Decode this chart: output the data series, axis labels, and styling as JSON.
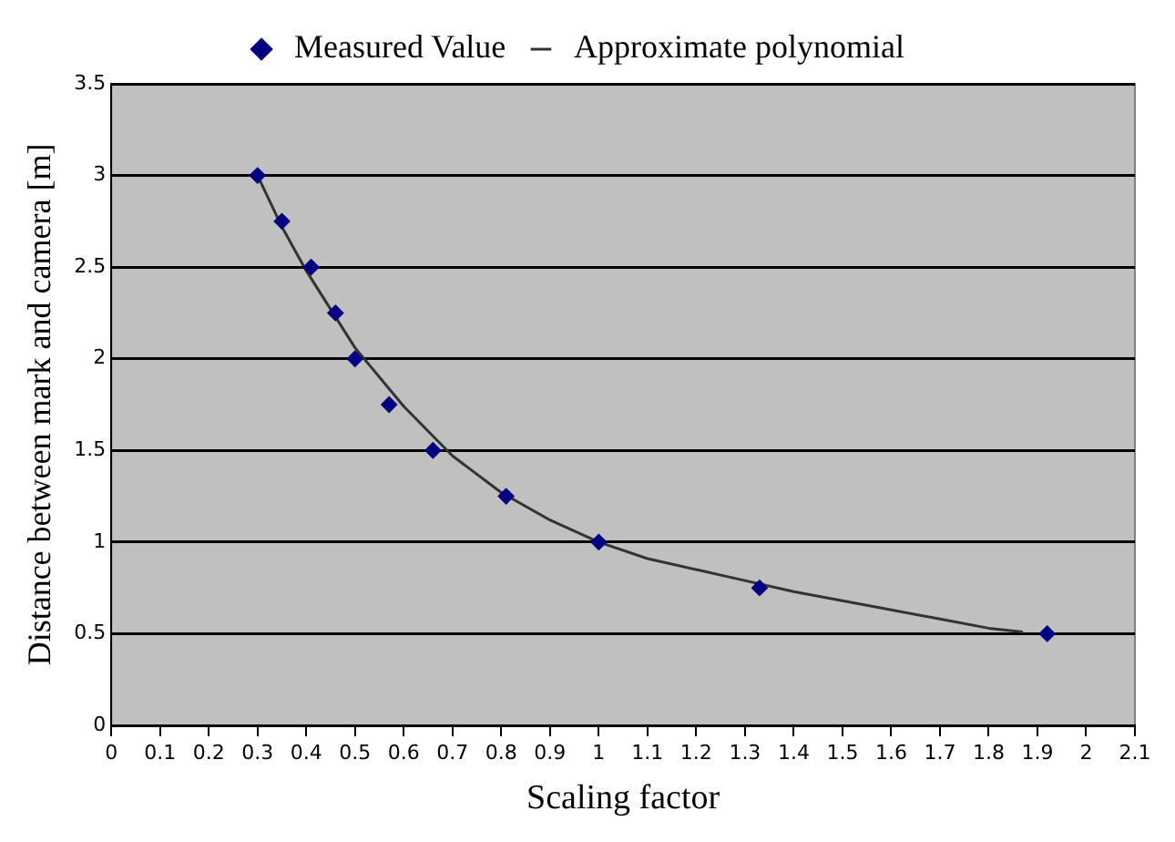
{
  "chart_data": {
    "type": "scatter",
    "xlabel": "Scaling factor",
    "ylabel": "Distance between mark and camera [m]",
    "xlim": [
      0,
      2.1
    ],
    "xticks": [
      0,
      0.1,
      0.2,
      0.3,
      0.4,
      0.5,
      0.6,
      0.7,
      0.8,
      0.9,
      1,
      1.1,
      1.2,
      1.3,
      1.4,
      1.5,
      1.6,
      1.7,
      1.8,
      1.9,
      2,
      2.1
    ],
    "ylim": [
      0,
      3.5
    ],
    "yticks": [
      0,
      0.5,
      1,
      1.5,
      2,
      2.5,
      3,
      3.5
    ],
    "grid": "y",
    "legend": "top",
    "series": [
      {
        "name": "Measured Value",
        "marker": "diamond",
        "color": "#000080",
        "x": [
          0.3,
          0.35,
          0.41,
          0.46,
          0.5,
          0.57,
          0.66,
          0.81,
          1.0,
          1.33,
          1.92
        ],
        "values": [
          3,
          2.75,
          2.5,
          2.25,
          2,
          1.75,
          1.5,
          1.25,
          1,
          0.75,
          0.5
        ]
      },
      {
        "name": "Approximate polynomial",
        "type": "line",
        "marker": "none",
        "color": "#333333",
        "line_style": "solid",
        "x": [
          0.3,
          0.35,
          0.4,
          0.45,
          0.5,
          0.6,
          0.7,
          0.8,
          0.9,
          1.0,
          1.1,
          1.2,
          1.3,
          1.4,
          1.5,
          1.6,
          1.7,
          1.8,
          1.87
        ],
        "values": [
          3.0,
          2.72,
          2.48,
          2.27,
          2.06,
          1.74,
          1.47,
          1.27,
          1.12,
          1.0,
          0.91,
          0.85,
          0.79,
          0.73,
          0.68,
          0.63,
          0.58,
          0.53,
          0.51
        ]
      }
    ]
  }
}
